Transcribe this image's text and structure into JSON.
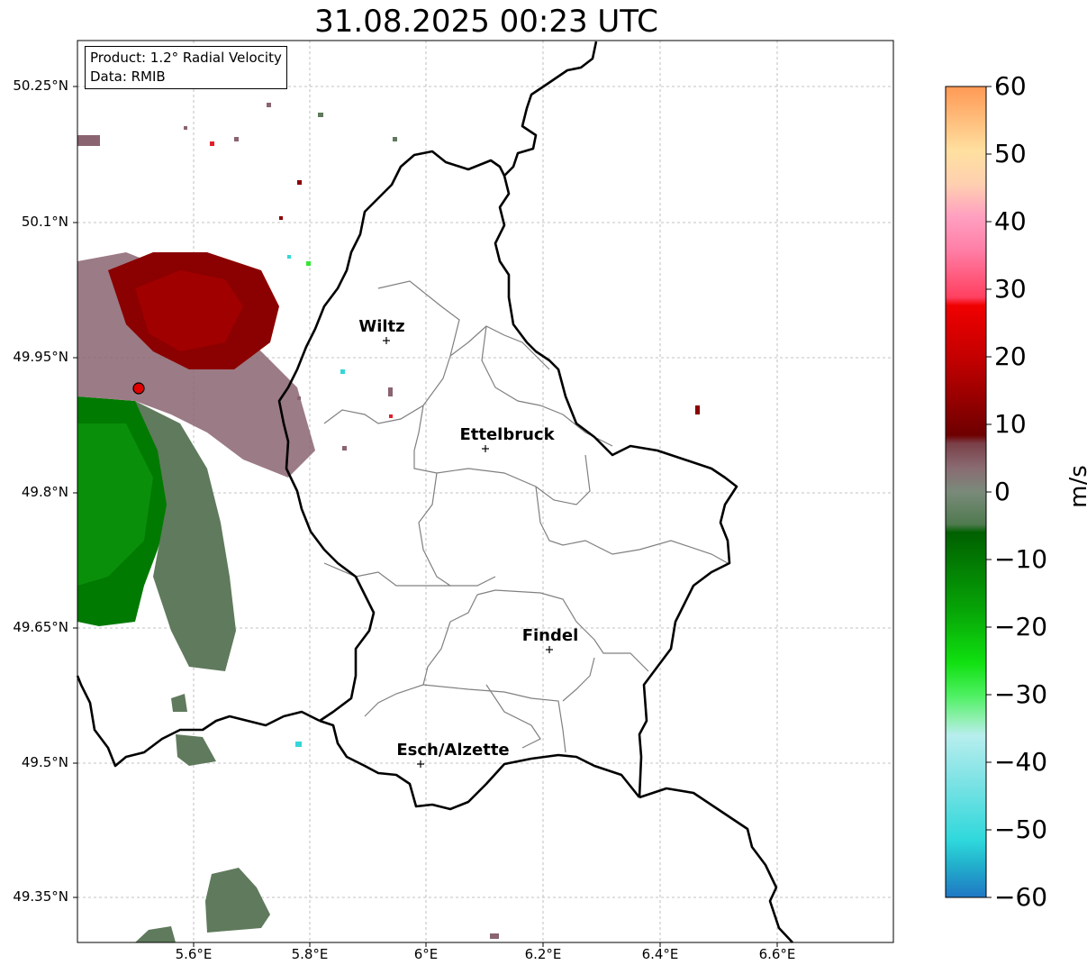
{
  "title": "31.08.2025 00:23 UTC",
  "info": {
    "product": "Product: 1.2° Radial Velocity",
    "data": "Data: RMIB"
  },
  "lat_labels": [
    "50.25°N",
    "50.1°N",
    "49.95°N",
    "49.8°N",
    "49.65°N",
    "49.5°N",
    "49.35°N"
  ],
  "lon_labels": [
    "5.6°E",
    "5.8°E",
    "6°E",
    "6.2°E",
    "6.4°E",
    "6.6°E"
  ],
  "colorbar": {
    "unit": "m/s",
    "ticks": [
      "60",
      "50",
      "40",
      "30",
      "20",
      "10",
      "0",
      "−10",
      "−20",
      "−30",
      "−40",
      "−50",
      "−60"
    ],
    "range": [
      -60,
      60
    ]
  },
  "cities": [
    {
      "name": "Wiltz"
    },
    {
      "name": "Ettelbruck"
    },
    {
      "name": "Findel"
    },
    {
      "name": "Esch/Alzette"
    }
  ],
  "colors": {
    "receding_strong": "#8b0000",
    "approaching_strong": "#007a00",
    "near_zero": "#5f7a5c",
    "near_zero_pos": "#8a6470",
    "radar_marker": "#e00000"
  }
}
